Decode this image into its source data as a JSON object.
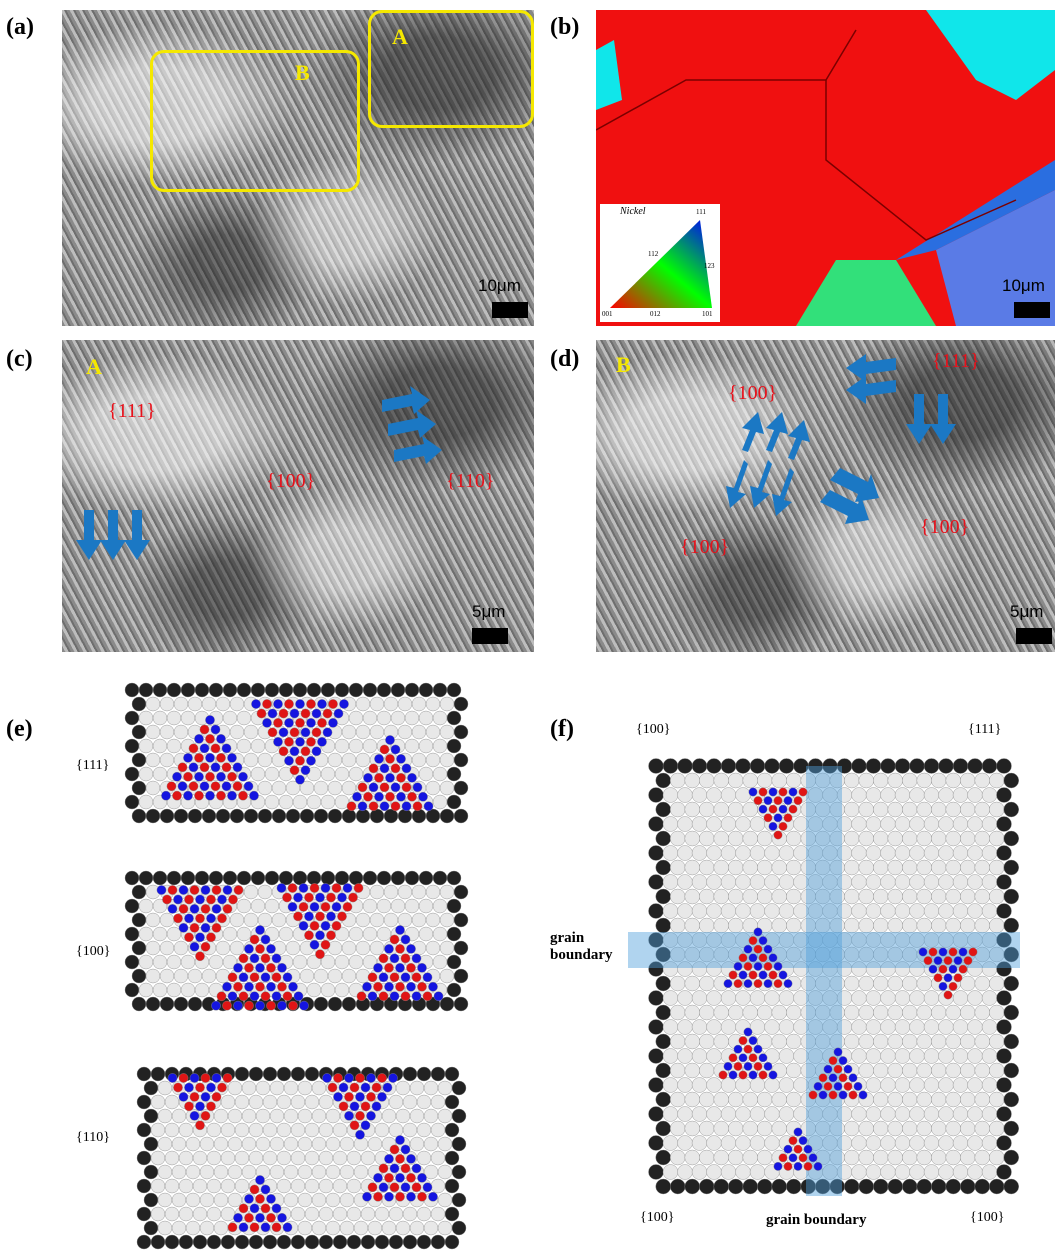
{
  "panels": {
    "a": {
      "label": "(a)",
      "box_a": "A",
      "box_b": "B",
      "scale": "10μm"
    },
    "b": {
      "label": "(b)",
      "scale": "10μm",
      "legend_title": "Nickel",
      "legend_ticks": {
        "top": "111",
        "left_mid": "112",
        "right_mid": "123",
        "bl": "001",
        "bm": "012",
        "br": "101"
      }
    },
    "c": {
      "label": "(c)",
      "region": "A",
      "scale": "5μm",
      "facets": [
        "{111}",
        "{100}",
        "{110}"
      ]
    },
    "d": {
      "label": "(d)",
      "region": "B",
      "scale": "5μm",
      "facets": [
        "{100}",
        "{111}",
        "{100}",
        "{100}"
      ]
    },
    "e": {
      "label": "(e)",
      "rows": [
        "{111}",
        "{100}",
        "{110}"
      ]
    },
    "f": {
      "label": "(f)",
      "corner_tl": "{100}",
      "corner_tr": "{111}",
      "corner_bl": "{100}",
      "corner_br": "{100}",
      "gb_left": "grain\nboundary",
      "gb_bottom": "grain boundary"
    }
  },
  "colors": {
    "yellow": "#f5e800",
    "red": "#e8101a",
    "blue_arrow": "#1b78c4",
    "ebsd_red": "#f01010",
    "ebsd_cyan": "#10e6ea",
    "ebsd_blue": "#5a7be6",
    "ebsd_green": "#32e07a",
    "atom_red": "#e01515",
    "atom_blue": "#1515e0"
  }
}
